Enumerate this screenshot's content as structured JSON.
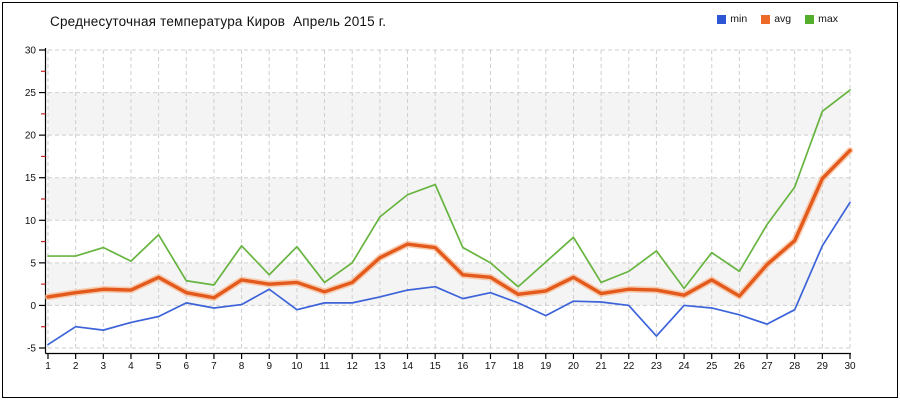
{
  "header": {
    "title": "Среднесуточная температура Киров  Апрель 2015 г."
  },
  "legend": {
    "items": [
      {
        "label": "min",
        "color": "#2e55d4"
      },
      {
        "label": "avg",
        "color": "#ed6a28"
      },
      {
        "label": "max",
        "color": "#55ad2e"
      }
    ]
  },
  "chart_data": {
    "type": "line",
    "title": "Среднесуточная температура Киров  Апрель 2015 г.",
    "xlabel": "",
    "ylabel": "",
    "x": [
      1,
      2,
      3,
      4,
      5,
      6,
      7,
      8,
      9,
      10,
      11,
      12,
      13,
      14,
      15,
      16,
      17,
      18,
      19,
      20,
      21,
      22,
      23,
      24,
      25,
      26,
      27,
      28,
      29,
      30
    ],
    "series": [
      {
        "name": "min",
        "color": "#3c63d9",
        "width": 1.7,
        "values": [
          -4.6,
          -2.5,
          -2.9,
          -2.0,
          -1.3,
          0.3,
          -0.3,
          0.1,
          1.9,
          -0.5,
          0.3,
          0.3,
          1.0,
          1.8,
          2.2,
          0.8,
          1.5,
          0.3,
          -1.2,
          0.5,
          0.4,
          0.0,
          -3.6,
          0.0,
          -0.3,
          -1.1,
          -2.2,
          -0.5,
          7.0,
          12.1
        ]
      },
      {
        "name": "avg",
        "color": "#e4591c",
        "halo_color": "#f7bc96",
        "width": 3.4,
        "values": [
          1.0,
          1.5,
          1.9,
          1.8,
          3.3,
          1.5,
          0.9,
          3.0,
          2.5,
          2.7,
          1.6,
          2.7,
          5.6,
          7.2,
          6.8,
          3.6,
          3.3,
          1.3,
          1.7,
          3.3,
          1.4,
          1.9,
          1.8,
          1.2,
          3.0,
          1.1,
          4.8,
          7.6,
          14.9,
          18.2
        ]
      },
      {
        "name": "max",
        "color": "#67b43f",
        "width": 1.7,
        "values": [
          5.8,
          5.8,
          6.8,
          5.2,
          8.3,
          2.9,
          2.4,
          7.0,
          3.6,
          6.9,
          2.7,
          5.0,
          10.4,
          13.0,
          14.2,
          6.8,
          5.0,
          2.2,
          5.1,
          8.0,
          2.7,
          4.0,
          6.4,
          2.0,
          6.2,
          4.0,
          9.5,
          13.9,
          22.8,
          25.3
        ]
      }
    ],
    "xlim": [
      1,
      30
    ],
    "ylim": [
      -5,
      30
    ],
    "y_ticks": [
      30,
      25,
      20,
      15,
      10,
      5,
      0,
      -5
    ],
    "y_minor_step": 2.5,
    "grid": "dashed",
    "grid_color": "#cfcfcf",
    "band_fill": "#f4f4f4",
    "band_ranges": [
      [
        20,
        25
      ],
      [
        10,
        15
      ],
      [
        0,
        5
      ]
    ],
    "axis_color": "#000000",
    "minor_tick_color": "#cc2222",
    "tick_label_color": "#111111",
    "legend_position": "top-right"
  }
}
